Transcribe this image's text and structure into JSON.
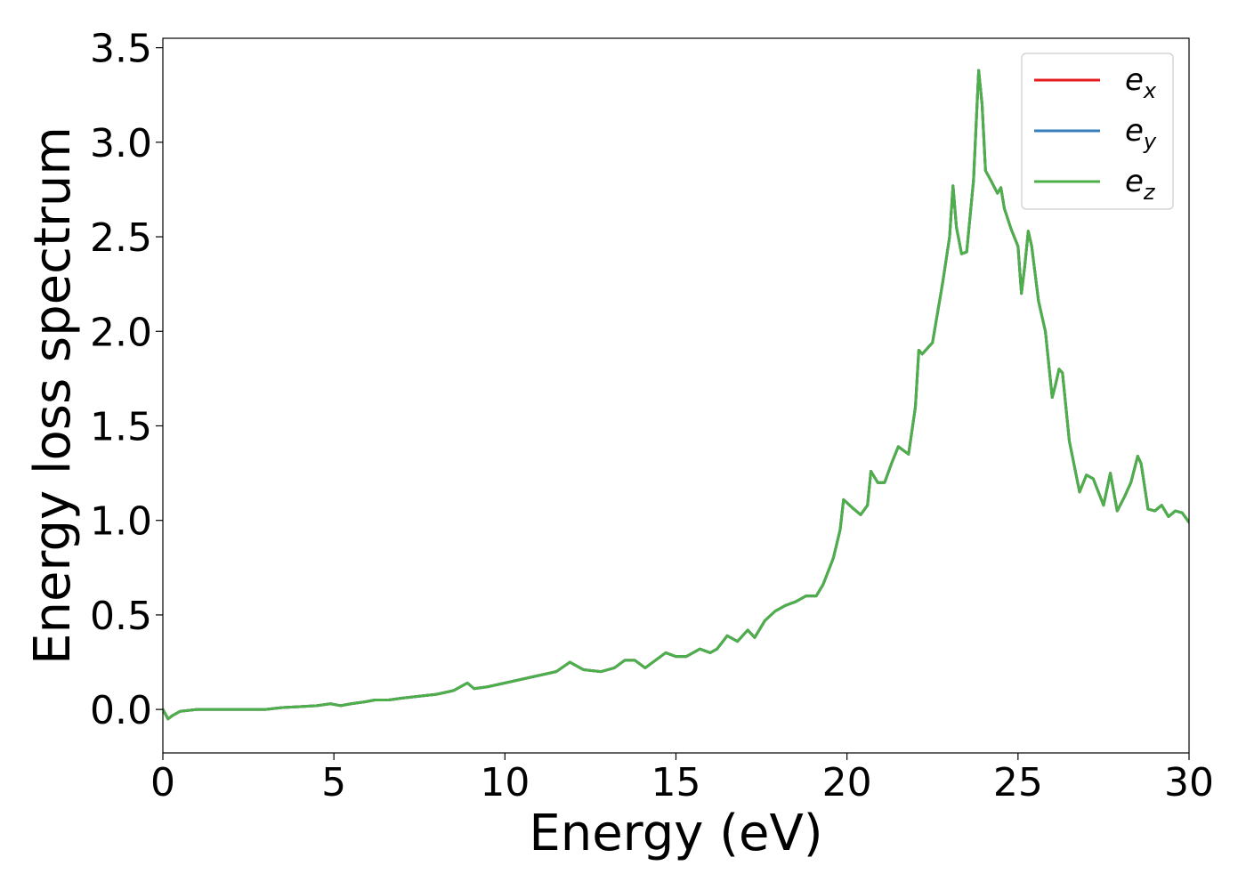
{
  "chart_data": {
    "type": "line",
    "title": "",
    "xlabel": "Energy (eV)",
    "ylabel": "Energy loss spectrum",
    "xlim": [
      0,
      30
    ],
    "ylim": [
      -0.23,
      3.55
    ],
    "xticks": [
      0,
      5,
      10,
      15,
      20,
      25,
      30
    ],
    "yticks": [
      0.0,
      0.5,
      1.0,
      1.5,
      2.0,
      2.5,
      3.0,
      3.5
    ],
    "xtick_labels": [
      "0",
      "5",
      "10",
      "15",
      "20",
      "25",
      "30"
    ],
    "ytick_labels": [
      "0.0",
      "0.5",
      "1.0",
      "1.5",
      "2.0",
      "2.5",
      "3.0",
      "3.5"
    ],
    "grid": false,
    "legend": {
      "placement": "top-right",
      "entries": [
        {
          "base": "e",
          "sub": "x",
          "color": "#e41a1c"
        },
        {
          "base": "e",
          "sub": "y",
          "color": "#377eb8"
        },
        {
          "base": "e",
          "sub": "z",
          "color": "#4daf4a"
        }
      ]
    },
    "x": [
      0,
      0.15,
      0.3,
      0.5,
      1.0,
      1.5,
      2.0,
      3.0,
      3.5,
      4.0,
      4.5,
      4.9,
      5.2,
      5.5,
      5.9,
      6.2,
      6.6,
      7.0,
      7.5,
      8.0,
      8.5,
      8.9,
      9.1,
      9.5,
      10.0,
      10.5,
      11.0,
      11.5,
      11.9,
      12.3,
      12.8,
      13.2,
      13.5,
      13.8,
      14.1,
      14.4,
      14.7,
      15.0,
      15.3,
      15.7,
      16.0,
      16.2,
      16.5,
      16.8,
      17.1,
      17.3,
      17.6,
      17.9,
      18.2,
      18.5,
      18.8,
      19.1,
      19.3,
      19.6,
      19.8,
      19.9,
      20.2,
      20.4,
      20.6,
      20.7,
      20.9,
      21.1,
      21.3,
      21.5,
      21.8,
      22.0,
      22.1,
      22.2,
      22.5,
      22.8,
      23.0,
      23.1,
      23.2,
      23.35,
      23.5,
      23.7,
      23.85,
      23.95,
      24.05,
      24.2,
      24.4,
      24.5,
      24.6,
      24.8,
      25.0,
      25.1,
      25.2,
      25.3,
      25.4,
      25.6,
      25.8,
      26.0,
      26.1,
      26.2,
      26.3,
      26.5,
      26.8,
      27.0,
      27.2,
      27.5,
      27.7,
      27.9,
      28.1,
      28.3,
      28.5,
      28.6,
      28.8,
      29.0,
      29.2,
      29.4,
      29.6,
      29.8,
      30.0
    ],
    "series": [
      {
        "name": "e_x",
        "color": "#e41a1c",
        "values": [
          0.0,
          -0.05,
          -0.03,
          -0.01,
          0.0,
          0.0,
          0.0,
          0.0,
          0.01,
          0.015,
          0.02,
          0.03,
          0.02,
          0.03,
          0.04,
          0.05,
          0.05,
          0.06,
          0.07,
          0.08,
          0.1,
          0.14,
          0.11,
          0.12,
          0.14,
          0.16,
          0.18,
          0.2,
          0.25,
          0.21,
          0.2,
          0.22,
          0.26,
          0.26,
          0.22,
          0.26,
          0.3,
          0.28,
          0.28,
          0.32,
          0.3,
          0.32,
          0.39,
          0.36,
          0.42,
          0.38,
          0.47,
          0.52,
          0.55,
          0.57,
          0.6,
          0.6,
          0.66,
          0.8,
          0.95,
          1.11,
          1.06,
          1.03,
          1.08,
          1.26,
          1.2,
          1.2,
          1.3,
          1.39,
          1.35,
          1.6,
          1.9,
          1.88,
          1.94,
          2.26,
          2.5,
          2.77,
          2.55,
          2.41,
          2.42,
          2.8,
          3.38,
          3.2,
          2.85,
          2.8,
          2.73,
          2.76,
          2.65,
          2.54,
          2.45,
          2.2,
          2.35,
          2.53,
          2.45,
          2.16,
          2.0,
          1.65,
          1.72,
          1.8,
          1.78,
          1.42,
          1.15,
          1.24,
          1.22,
          1.08,
          1.25,
          1.05,
          1.12,
          1.2,
          1.34,
          1.3,
          1.06,
          1.05,
          1.08,
          1.02,
          1.05,
          1.04,
          0.99
        ]
      },
      {
        "name": "e_y",
        "color": "#377eb8",
        "values": [
          0.0,
          -0.05,
          -0.03,
          -0.01,
          0.0,
          0.0,
          0.0,
          0.0,
          0.01,
          0.015,
          0.02,
          0.03,
          0.02,
          0.03,
          0.04,
          0.05,
          0.05,
          0.06,
          0.07,
          0.08,
          0.1,
          0.14,
          0.11,
          0.12,
          0.14,
          0.16,
          0.18,
          0.2,
          0.25,
          0.21,
          0.2,
          0.22,
          0.26,
          0.26,
          0.22,
          0.26,
          0.3,
          0.28,
          0.28,
          0.32,
          0.3,
          0.32,
          0.39,
          0.36,
          0.42,
          0.38,
          0.47,
          0.52,
          0.55,
          0.57,
          0.6,
          0.6,
          0.66,
          0.8,
          0.95,
          1.11,
          1.06,
          1.03,
          1.08,
          1.26,
          1.2,
          1.2,
          1.3,
          1.39,
          1.35,
          1.6,
          1.9,
          1.88,
          1.94,
          2.26,
          2.5,
          2.77,
          2.55,
          2.41,
          2.42,
          2.8,
          3.38,
          3.2,
          2.85,
          2.8,
          2.73,
          2.76,
          2.65,
          2.54,
          2.45,
          2.2,
          2.35,
          2.53,
          2.45,
          2.16,
          2.0,
          1.65,
          1.72,
          1.8,
          1.78,
          1.42,
          1.15,
          1.24,
          1.22,
          1.08,
          1.25,
          1.05,
          1.12,
          1.2,
          1.34,
          1.3,
          1.06,
          1.05,
          1.08,
          1.02,
          1.05,
          1.04,
          0.99
        ]
      },
      {
        "name": "e_z",
        "color": "#4daf4a",
        "values": [
          0.0,
          -0.05,
          -0.03,
          -0.01,
          0.0,
          0.0,
          0.0,
          0.0,
          0.01,
          0.015,
          0.02,
          0.03,
          0.02,
          0.03,
          0.04,
          0.05,
          0.05,
          0.06,
          0.07,
          0.08,
          0.1,
          0.14,
          0.11,
          0.12,
          0.14,
          0.16,
          0.18,
          0.2,
          0.25,
          0.21,
          0.2,
          0.22,
          0.26,
          0.26,
          0.22,
          0.26,
          0.3,
          0.28,
          0.28,
          0.32,
          0.3,
          0.32,
          0.39,
          0.36,
          0.42,
          0.38,
          0.47,
          0.52,
          0.55,
          0.57,
          0.6,
          0.6,
          0.66,
          0.8,
          0.95,
          1.11,
          1.06,
          1.03,
          1.08,
          1.26,
          1.2,
          1.2,
          1.3,
          1.39,
          1.35,
          1.6,
          1.9,
          1.88,
          1.94,
          2.26,
          2.5,
          2.77,
          2.55,
          2.41,
          2.42,
          2.8,
          3.38,
          3.2,
          2.85,
          2.8,
          2.73,
          2.76,
          2.65,
          2.54,
          2.45,
          2.2,
          2.35,
          2.53,
          2.45,
          2.16,
          2.0,
          1.65,
          1.72,
          1.8,
          1.78,
          1.42,
          1.15,
          1.24,
          1.22,
          1.08,
          1.25,
          1.05,
          1.12,
          1.2,
          1.34,
          1.3,
          1.06,
          1.05,
          1.08,
          1.02,
          1.05,
          1.04,
          0.99
        ]
      }
    ]
  }
}
